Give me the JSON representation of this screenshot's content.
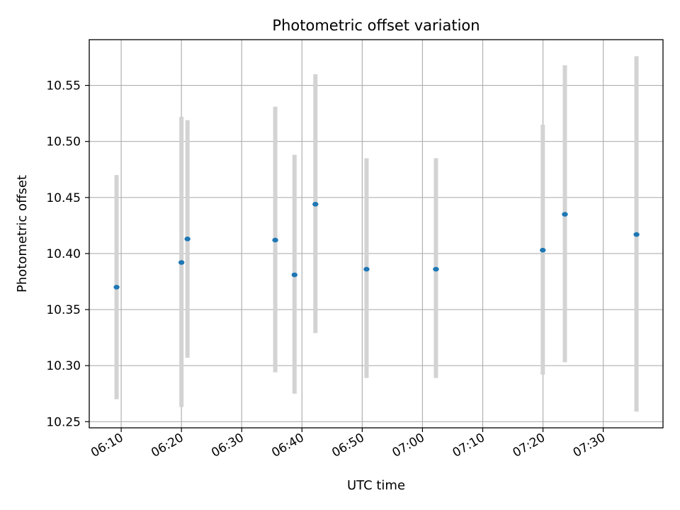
{
  "chart_data": {
    "type": "scatter",
    "title": "Photometric offset variation",
    "xlabel": "UTC time",
    "ylabel": "Photometric offset",
    "x_ticks": [
      "06:10",
      "06:20",
      "06:30",
      "06:40",
      "06:50",
      "07:00",
      "07:10",
      "07:20",
      "07:30"
    ],
    "y_ticks": [
      "10.25",
      "10.30",
      "10.35",
      "10.40",
      "10.45",
      "10.50",
      "10.55"
    ],
    "xlim": [
      "06:04:42",
      "07:39:55"
    ],
    "ylim": [
      10.2445,
      10.5908
    ],
    "grid": true,
    "colors": {
      "point": "#1f77b4",
      "errorbar": "#d3d3d3",
      "grid": "#b0b0b0"
    },
    "points": [
      {
        "x": "06:09:14",
        "y": 10.37,
        "y_low": 10.27,
        "y_high": 10.47
      },
      {
        "x": "06:20:00",
        "y": 10.392,
        "y_low": 10.263,
        "y_high": 10.522
      },
      {
        "x": "06:21:00",
        "y": 10.413,
        "y_low": 10.307,
        "y_high": 10.519
      },
      {
        "x": "06:35:34",
        "y": 10.412,
        "y_low": 10.294,
        "y_high": 10.531
      },
      {
        "x": "06:38:46",
        "y": 10.381,
        "y_low": 10.275,
        "y_high": 10.488
      },
      {
        "x": "06:42:14",
        "y": 10.444,
        "y_low": 10.329,
        "y_high": 10.56
      },
      {
        "x": "06:50:43",
        "y": 10.386,
        "y_low": 10.289,
        "y_high": 10.485
      },
      {
        "x": "07:02:14",
        "y": 10.386,
        "y_low": 10.289,
        "y_high": 10.485
      },
      {
        "x": "07:19:58",
        "y": 10.403,
        "y_low": 10.292,
        "y_high": 10.515
      },
      {
        "x": "07:23:38",
        "y": 10.435,
        "y_low": 10.303,
        "y_high": 10.568
      },
      {
        "x": "07:35:31",
        "y": 10.417,
        "y_low": 10.259,
        "y_high": 10.576
      }
    ]
  }
}
